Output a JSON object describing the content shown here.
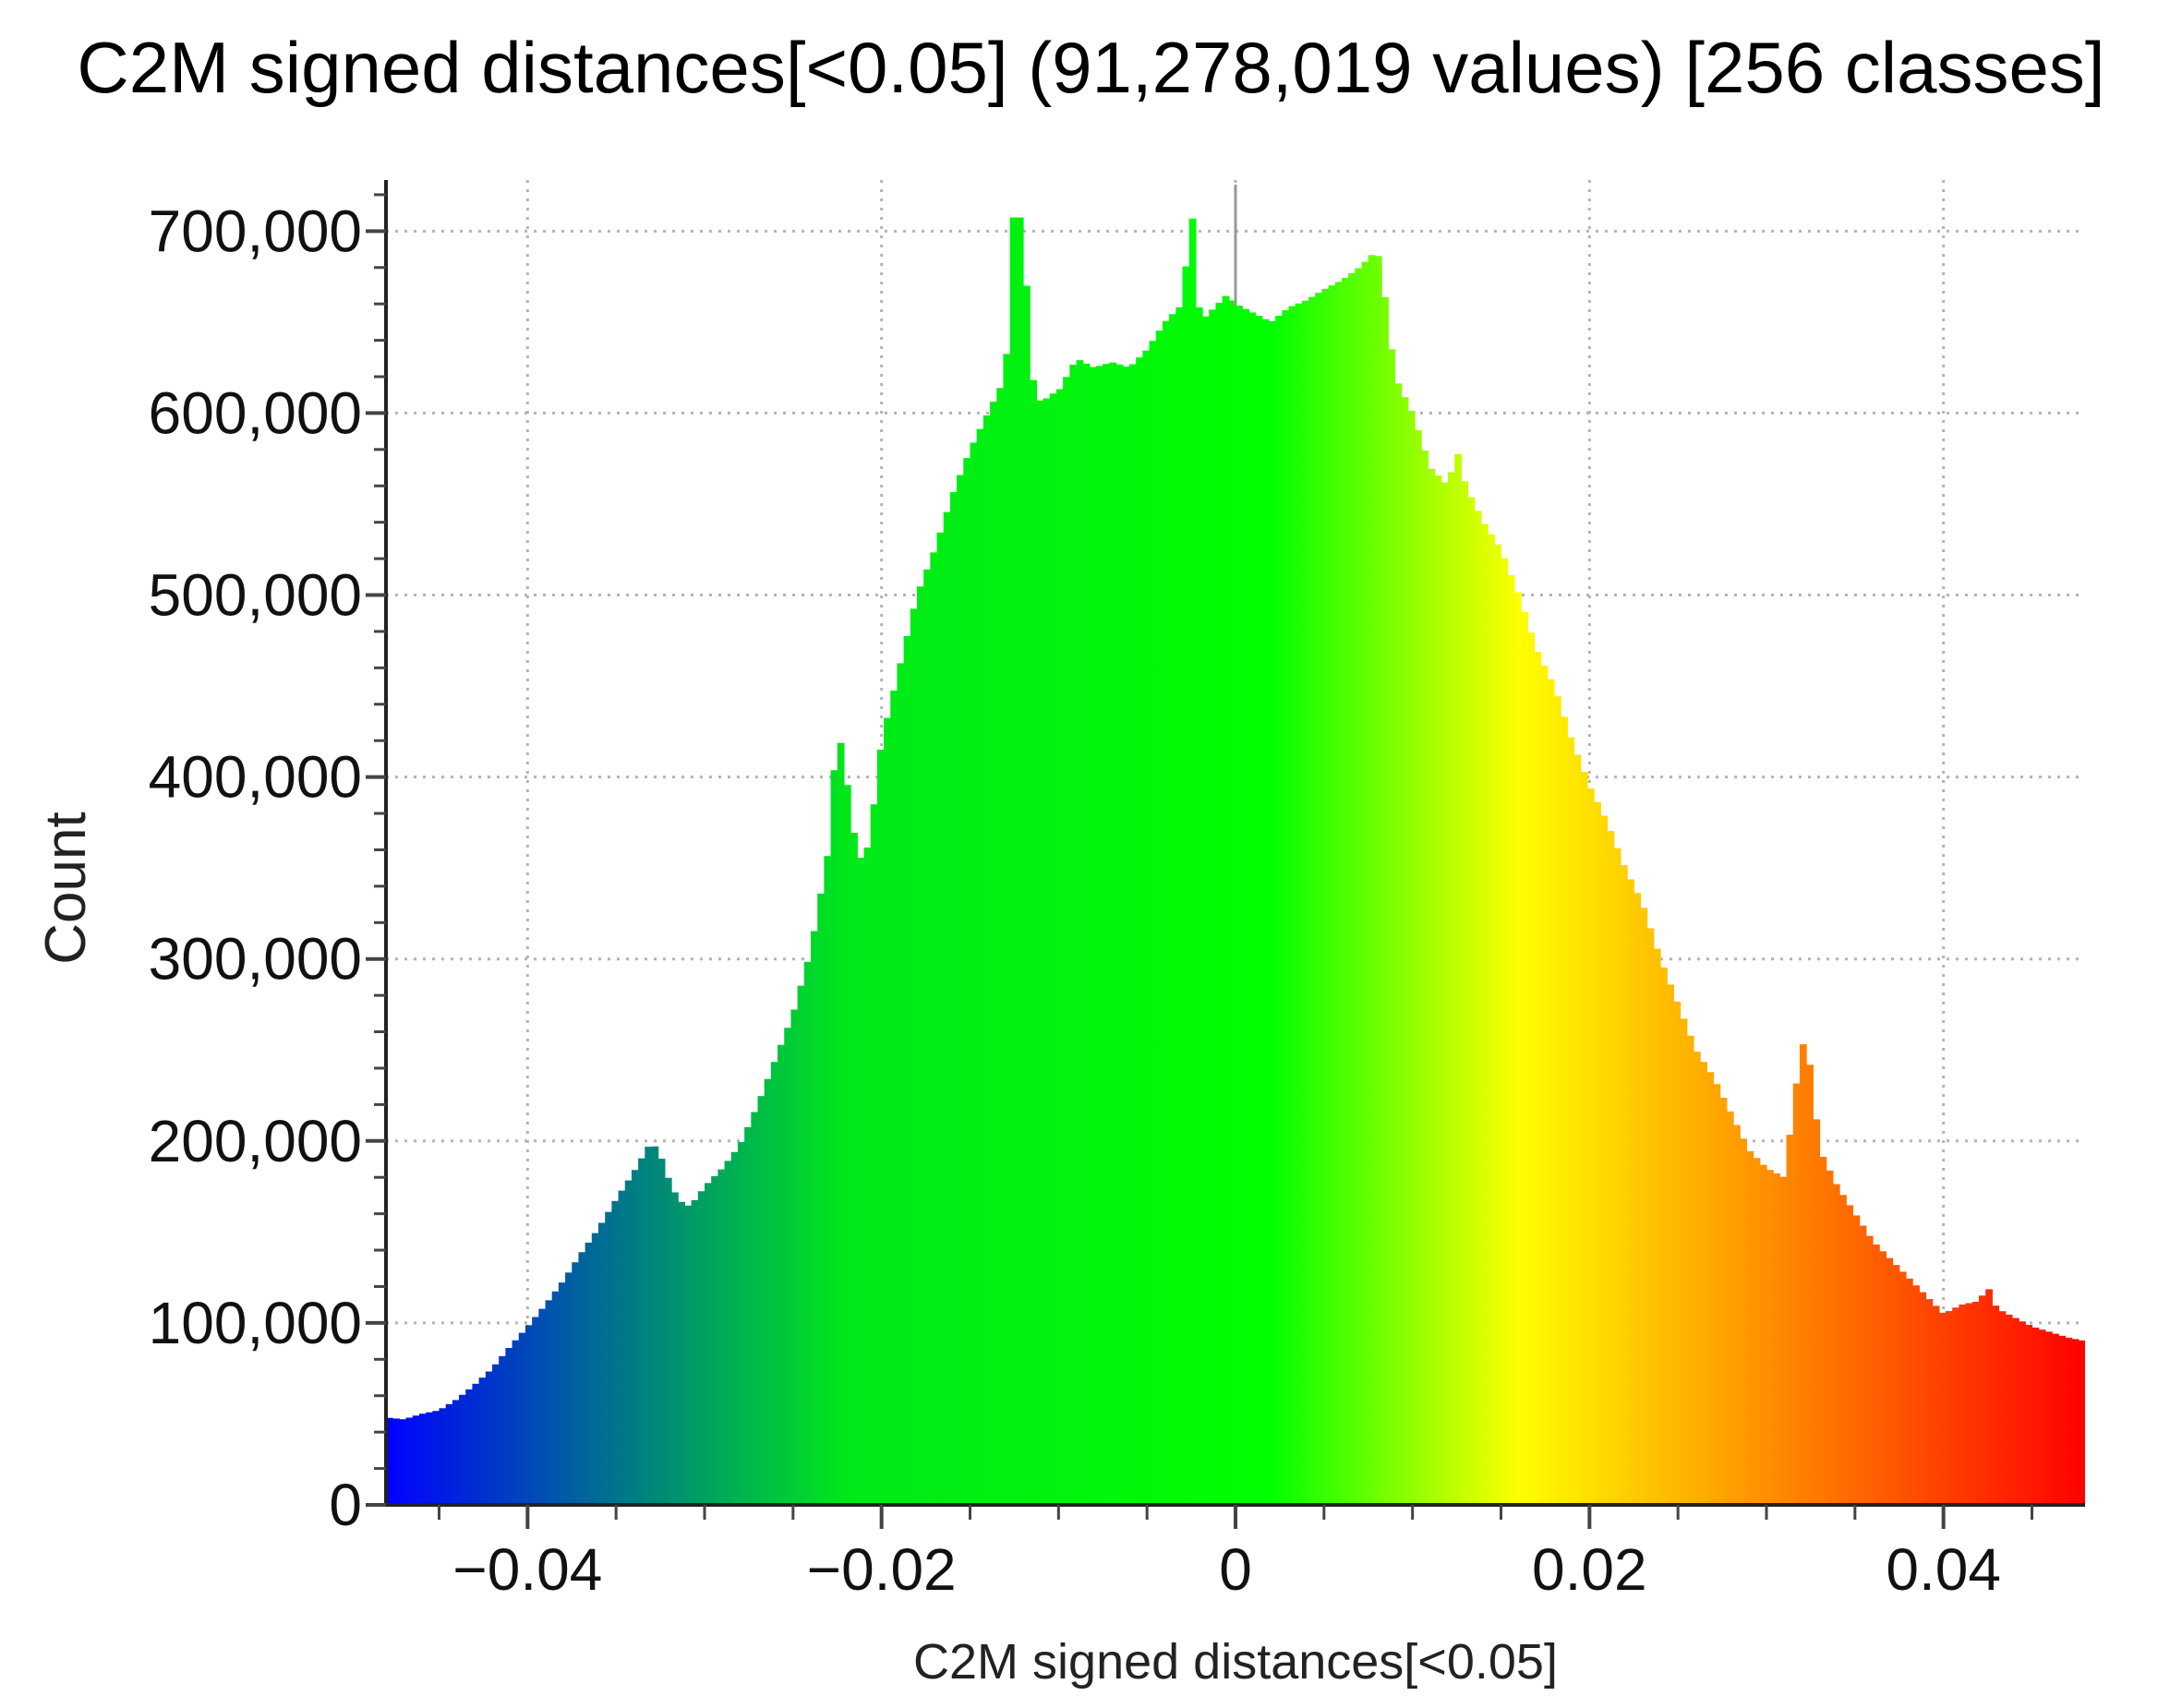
{
  "chart_data": {
    "type": "bar",
    "title": "C2M signed distances[<0.05] (91,278,019 values) [256 classes]",
    "xlabel": "C2M signed distances[<0.05]",
    "ylabel": "Count",
    "xlim": [
      -0.048,
      0.048
    ],
    "ylim": [
      0,
      723000
    ],
    "x_ticks": [
      {
        "value": -0.04,
        "label": "−0.04"
      },
      {
        "value": -0.02,
        "label": "−0.02"
      },
      {
        "value": 0,
        "label": "0"
      },
      {
        "value": 0.02,
        "label": "0.02"
      },
      {
        "value": 0.04,
        "label": "0.04"
      }
    ],
    "y_ticks": [
      {
        "value": 0,
        "label": "0"
      },
      {
        "value": 100000,
        "label": "100,000"
      },
      {
        "value": 200000,
        "label": "200,000"
      },
      {
        "value": 300000,
        "label": "300,000"
      },
      {
        "value": 400000,
        "label": "400,000"
      },
      {
        "value": 500000,
        "label": "500,000"
      },
      {
        "value": 600000,
        "label": "600,000"
      },
      {
        "value": 700000,
        "label": "700,000"
      }
    ],
    "grid": true,
    "classes": 256,
    "bin_width": 0.000375,
    "zero_marker": 0,
    "colormap": [
      {
        "value": -0.048,
        "color": "#0000ff"
      },
      {
        "value": -0.022,
        "color": "#00e81a"
      },
      {
        "value": 0.002,
        "color": "#00ff00"
      },
      {
        "value": 0.016,
        "color": "#ffff00"
      },
      {
        "value": 0.048,
        "color": "#ff0000"
      }
    ],
    "x": [
      -0.048,
      -0.047,
      -0.046,
      -0.045,
      -0.044,
      -0.043,
      -0.042,
      -0.041,
      -0.04,
      -0.039,
      -0.038,
      -0.037,
      -0.036,
      -0.035,
      -0.034,
      -0.033,
      -0.0325,
      -0.032,
      -0.0315,
      -0.031,
      -0.0305,
      -0.03,
      -0.029,
      -0.028,
      -0.027,
      -0.026,
      -0.025,
      -0.024,
      -0.023,
      -0.0225,
      -0.022,
      -0.0215,
      -0.021,
      -0.0205,
      -0.02,
      -0.019,
      -0.018,
      -0.017,
      -0.016,
      -0.015,
      -0.014,
      -0.013,
      -0.0125,
      -0.012,
      -0.0115,
      -0.011,
      -0.0105,
      -0.01,
      -0.009,
      -0.008,
      -0.007,
      -0.006,
      -0.005,
      -0.004,
      -0.003,
      -0.0025,
      -0.002,
      -0.0015,
      -0.001,
      -0.0005,
      0,
      0.001,
      0.002,
      0.003,
      0.004,
      0.005,
      0.006,
      0.007,
      0.008,
      0.0085,
      0.009,
      0.01,
      0.011,
      0.012,
      0.0125,
      0.013,
      0.014,
      0.015,
      0.016,
      0.017,
      0.018,
      0.019,
      0.02,
      0.021,
      0.022,
      0.023,
      0.024,
      0.025,
      0.026,
      0.027,
      0.028,
      0.029,
      0.03,
      0.031,
      0.032,
      0.0325,
      0.033,
      0.034,
      0.035,
      0.036,
      0.037,
      0.038,
      0.039,
      0.04,
      0.041,
      0.042,
      0.0425,
      0.043,
      0.044,
      0.045,
      0.046,
      0.047,
      0.048
    ],
    "values": [
      48000,
      47000,
      50000,
      52000,
      58000,
      66000,
      75000,
      87000,
      98000,
      110000,
      123000,
      138000,
      152000,
      168000,
      183000,
      200000,
      192000,
      178000,
      168000,
      164000,
      168000,
      175000,
      185000,
      198000,
      220000,
      245000,
      270000,
      305000,
      360000,
      430000,
      400000,
      365000,
      350000,
      380000,
      420000,
      460000,
      500000,
      525000,
      555000,
      580000,
      600000,
      620000,
      720000,
      700000,
      620000,
      605000,
      610000,
      612000,
      630000,
      625000,
      628000,
      625000,
      635000,
      650000,
      660000,
      715000,
      650000,
      655000,
      660000,
      665000,
      660000,
      655000,
      650000,
      658000,
      662000,
      668000,
      673000,
      680000,
      690000,
      660000,
      620000,
      600000,
      570000,
      560000,
      580000,
      560000,
      540000,
      525000,
      500000,
      470000,
      450000,
      420000,
      395000,
      375000,
      350000,
      330000,
      300000,
      275000,
      250000,
      235000,
      215000,
      195000,
      185000,
      180000,
      255000,
      240000,
      195000,
      175000,
      160000,
      145000,
      135000,
      125000,
      115000,
      105000,
      110000,
      112000,
      120000,
      108000,
      103000,
      98000,
      95000,
      92000,
      90000
    ]
  }
}
